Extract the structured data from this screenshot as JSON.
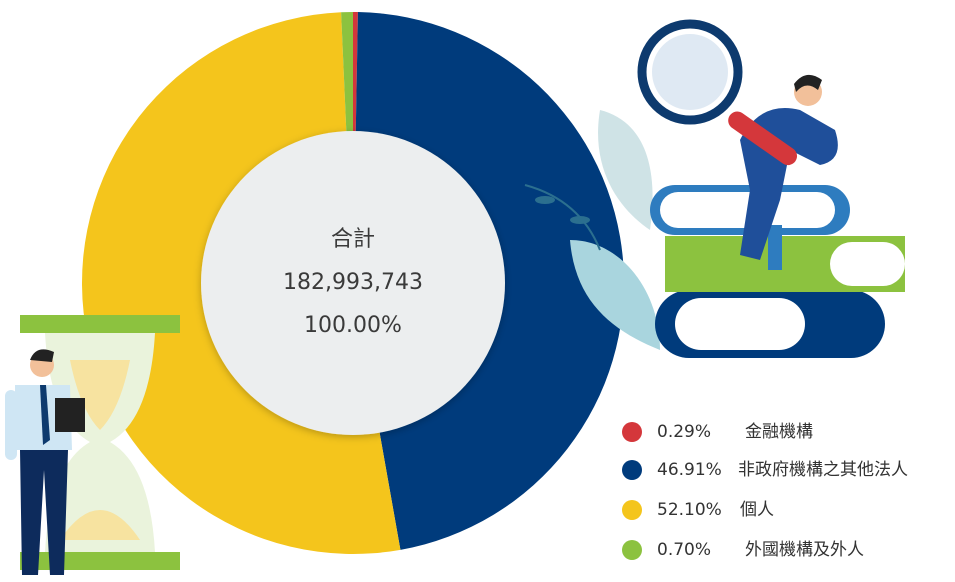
{
  "chart_data": {
    "type": "donut",
    "center_title": "合計",
    "total_label": "182,993,743",
    "total_percent_label": "100.00%",
    "categories": [
      "金融機構",
      "非政府機構之其他法人",
      "個人",
      "外國機構及外人"
    ],
    "values": [
      0.29,
      46.91,
      52.1,
      0.7
    ],
    "value_labels": [
      "0.29%",
      "46.91%",
      "52.10%",
      "0.70%"
    ],
    "colors": [
      "#d4373b",
      "#003b7c",
      "#f4c51c",
      "#8cc23f"
    ]
  }
}
